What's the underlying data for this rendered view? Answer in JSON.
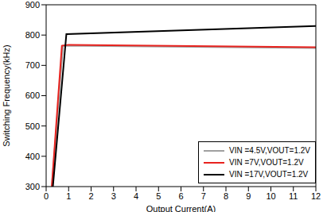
{
  "chart_data": {
    "type": "line",
    "xlabel": "Output Current(A)",
    "ylabel": "Switching Frequency(kHz)",
    "xlim": [
      0,
      12
    ],
    "xticks": [
      0,
      1,
      2,
      3,
      4,
      5,
      6,
      7,
      8,
      9,
      10,
      11,
      12
    ],
    "ylim": [
      300,
      900
    ],
    "yticks": [
      300,
      400,
      500,
      600,
      700,
      800,
      900
    ],
    "grid": false,
    "legend": "lower right",
    "series": [
      {
        "name": "VIN =4.5V,VOUT=1.2V",
        "color": "#a0a0a0",
        "x": [
          0.25,
          0.75,
          12
        ],
        "values": [
          300,
          765,
          757
        ]
      },
      {
        "name": "VIN =7V,VOUT=1.2V",
        "color": "#e8231f",
        "x": [
          0.25,
          0.7,
          1,
          12
        ],
        "values": [
          300,
          765,
          768,
          760
        ]
      },
      {
        "name": "VIN =17V,VOUT=1.2V",
        "color": "#000000",
        "x": [
          0.3,
          0.9,
          12
        ],
        "values": [
          300,
          803,
          830
        ]
      }
    ]
  }
}
